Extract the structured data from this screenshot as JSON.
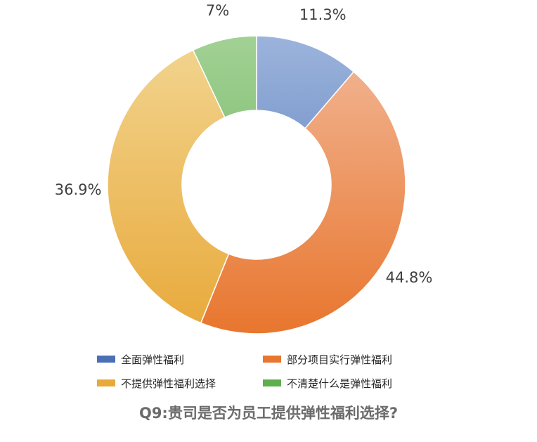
{
  "chart_data": {
    "type": "pie",
    "donut": true,
    "title": "Q9:贵司是否为员工提供弹性福利选择?",
    "slices": [
      {
        "label": "全面弹性福利",
        "value": 11.3,
        "display": "11.3%",
        "color": "#4a6fb5",
        "color_light": "#9cb4dc"
      },
      {
        "label": "部分项目实行弹性福利",
        "value": 44.8,
        "display": "44.8%",
        "color": "#e8762e",
        "color_light": "#f2b898"
      },
      {
        "label": "不提供弹性福利选择",
        "value": 36.9,
        "display": "36.9%",
        "color": "#e8a93a",
        "color_light": "#f2d591"
      },
      {
        "label": "不清楚什么是弹性福利",
        "value": 7,
        "display": "7%",
        "color": "#5fae4f",
        "color_light": "#a2d195"
      }
    ],
    "legend_position": "bottom",
    "start_angle": "12 o'clock, clockwise"
  }
}
